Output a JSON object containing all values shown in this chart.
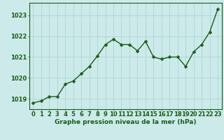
{
  "x": [
    0,
    1,
    2,
    3,
    4,
    5,
    6,
    7,
    8,
    9,
    10,
    11,
    12,
    13,
    14,
    15,
    16,
    17,
    18,
    19,
    20,
    21,
    22,
    23
  ],
  "y": [
    1018.8,
    1018.9,
    1019.1,
    1019.1,
    1019.7,
    1019.85,
    1020.2,
    1020.55,
    1021.05,
    1021.6,
    1021.85,
    1021.6,
    1021.6,
    1021.3,
    1021.75,
    1021.0,
    1020.9,
    1021.0,
    1021.0,
    1020.55,
    1021.25,
    1021.6,
    1022.2,
    1023.3
  ],
  "line_color": "#1a5c1a",
  "marker_color": "#1a5c1a",
  "bg_color": "#cceaea",
  "grid_color_major": "#b0d4d4",
  "grid_color_minor": "#c4e0e0",
  "ylabel_ticks": [
    1019,
    1020,
    1021,
    1022,
    1023
  ],
  "xlabel_label": "Graphe pression niveau de la mer (hPa)",
  "xlim": [
    -0.5,
    23.5
  ],
  "ylim": [
    1018.5,
    1023.6
  ],
  "xlabel_fontsize": 6.5,
  "tick_fontsize": 6.0,
  "line_width": 1.0,
  "marker_size": 2.5,
  "label_color": "#1a5c1a"
}
